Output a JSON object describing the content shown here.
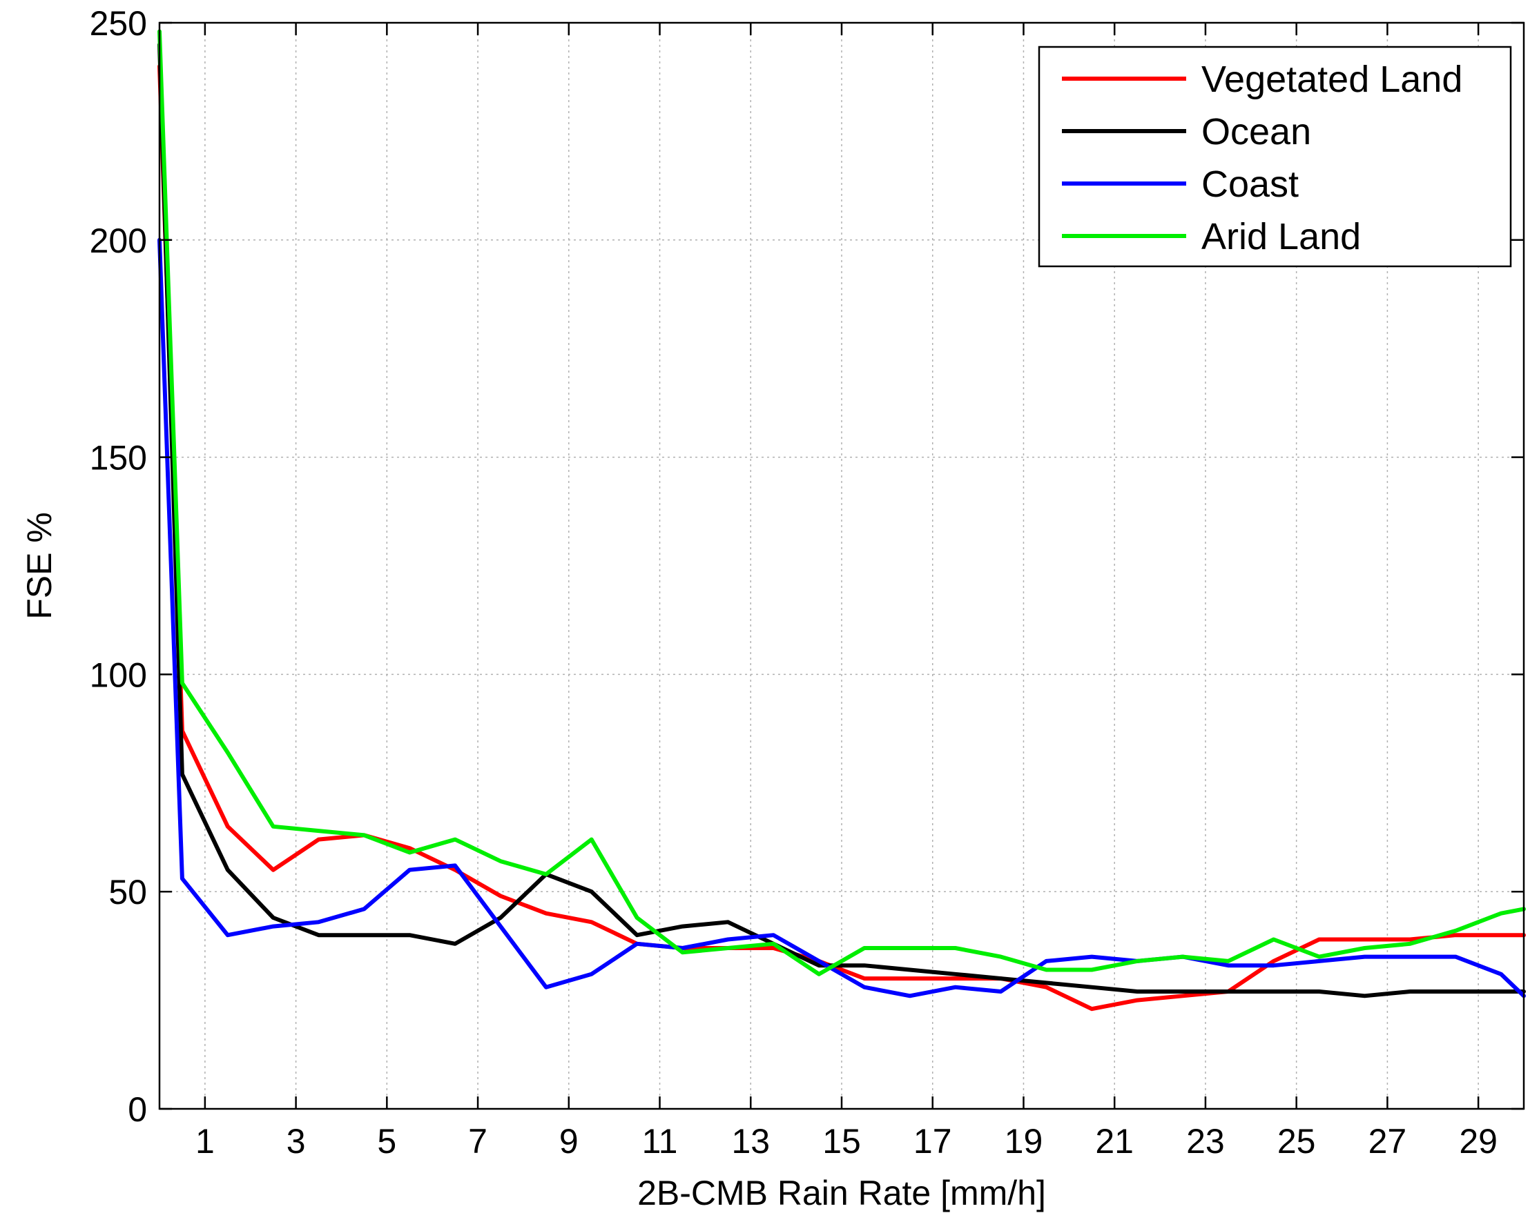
{
  "chart_data": {
    "type": "line",
    "title": "",
    "xlabel": "2B-CMB Rain Rate [mm/h]",
    "ylabel": "FSE %",
    "xlim": [
      0,
      30
    ],
    "ylim": [
      0,
      250
    ],
    "grid": true,
    "legend_position": "top-right",
    "x_ticks": [
      1,
      3,
      5,
      7,
      9,
      11,
      13,
      15,
      17,
      19,
      21,
      23,
      25,
      27,
      29
    ],
    "y_ticks": [
      0,
      50,
      100,
      150,
      200,
      250
    ],
    "x": [
      0,
      0.5,
      1.5,
      2.5,
      3.5,
      4.5,
      5.5,
      6.5,
      7.5,
      8.5,
      9.5,
      10.5,
      11.5,
      12.5,
      13.5,
      14.5,
      15.5,
      16.5,
      17.5,
      18.5,
      19.5,
      20.5,
      21.5,
      22.5,
      23.5,
      24.5,
      25.5,
      26.5,
      27.5,
      28.5,
      29.5,
      30
    ],
    "series": [
      {
        "name": "Vegetated Land",
        "color": "#ff0000",
        "values": [
          240,
          87,
          65,
          55,
          62,
          63,
          60,
          55,
          49,
          45,
          43,
          38,
          37,
          37,
          37,
          34,
          30,
          30,
          30,
          30,
          28,
          23,
          25,
          26,
          27,
          34,
          39,
          39,
          39,
          40,
          40,
          40
        ]
      },
      {
        "name": "Ocean",
        "color": "#000000",
        "values": [
          245,
          77,
          55,
          44,
          40,
          40,
          40,
          38,
          44,
          54,
          50,
          40,
          42,
          43,
          38,
          33,
          33,
          32,
          31,
          30,
          29,
          28,
          27,
          27,
          27,
          27,
          27,
          26,
          27,
          27,
          27,
          27
        ]
      },
      {
        "name": "Coast",
        "color": "#0000ff",
        "values": [
          200,
          53,
          40,
          42,
          43,
          46,
          55,
          56,
          42,
          28,
          31,
          38,
          37,
          39,
          40,
          34,
          28,
          26,
          28,
          27,
          34,
          35,
          34,
          35,
          33,
          33,
          34,
          35,
          35,
          35,
          31,
          26
        ]
      },
      {
        "name": "Arid Land",
        "color": "#00ee00",
        "values": [
          248,
          98,
          82,
          65,
          64,
          63,
          59,
          62,
          57,
          54,
          62,
          44,
          36,
          37,
          38,
          31,
          37,
          37,
          37,
          35,
          32,
          32,
          34,
          35,
          34,
          39,
          35,
          37,
          38,
          41,
          45,
          46
        ]
      }
    ]
  }
}
